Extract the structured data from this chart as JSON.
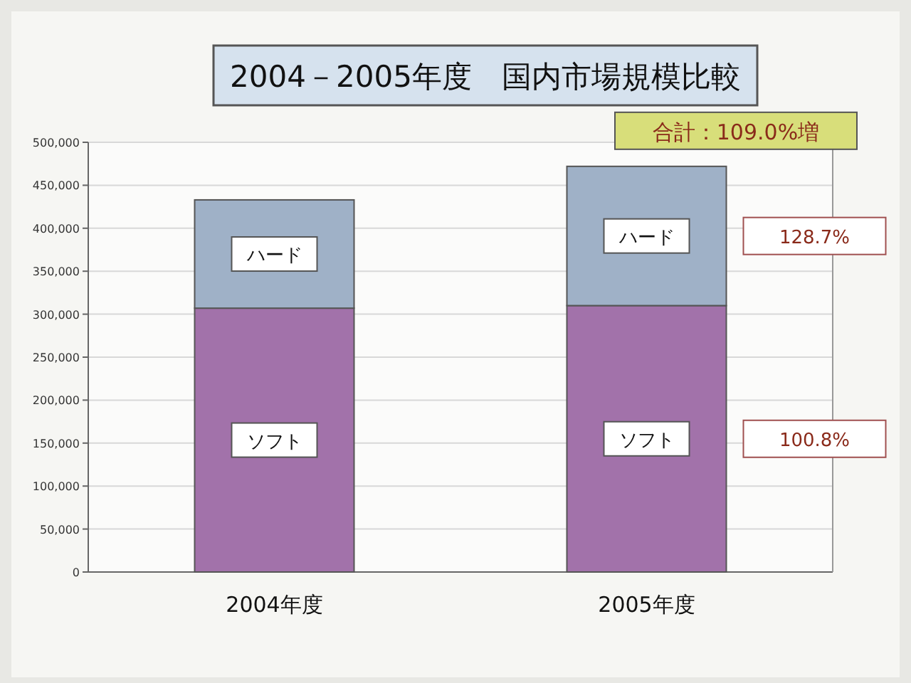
{
  "chart_data": {
    "type": "bar",
    "title": "2004－2005年度　国内市場規模比較",
    "categories": [
      "2004年度",
      "2005年度"
    ],
    "stacked": true,
    "series": [
      {
        "name": "ソフト",
        "color": "#a272aa",
        "values": [
          307000,
          310000
        ]
      },
      {
        "name": "ハード",
        "color": "#9fb1c7",
        "values": [
          126000,
          162000
        ]
      }
    ],
    "ylim": [
      0,
      500000
    ],
    "yticks": [
      0,
      {
        "value": 50000,
        "label": "50,000"
      },
      {
        "value": 100000,
        "label": "100,000"
      },
      {
        "value": 150000,
        "label": "150,000"
      },
      {
        "value": 200000,
        "label": "200,000"
      },
      {
        "value": 250000,
        "label": "250,000"
      },
      {
        "value": 300000,
        "label": "300,000"
      },
      {
        "value": 350000,
        "label": "350,000"
      },
      {
        "value": 400000,
        "label": "400,000"
      },
      {
        "value": 450000,
        "label": "450,000"
      },
      {
        "value": 500000,
        "label": "500,000"
      }
    ],
    "grid": "y",
    "legend": false,
    "annotations": [
      "合計：109.0%増",
      "128.7%",
      "100.8%"
    ]
  }
}
